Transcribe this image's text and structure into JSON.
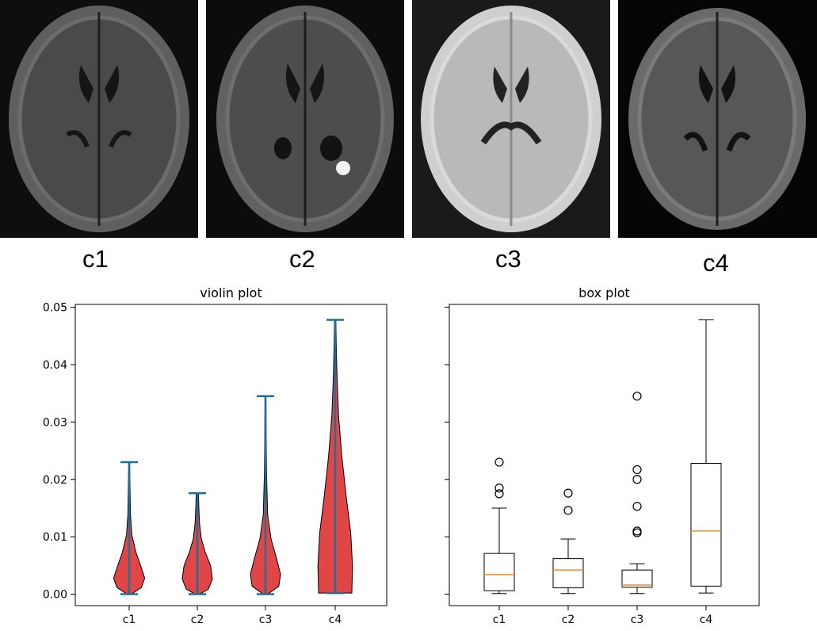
{
  "images": [
    {
      "caption": "c1"
    },
    {
      "caption": "c2"
    },
    {
      "caption": "c3"
    },
    {
      "caption": "c4"
    }
  ],
  "colors": {
    "violin_fill": "#e04646",
    "violin_edge": "#000000",
    "violin_lines": "#1f6f9a",
    "box_median": "#f28e2b",
    "box_edge": "#000000"
  },
  "chart_data": [
    {
      "type": "violin",
      "title": "violin plot",
      "categories": [
        "c1",
        "c2",
        "c3",
        "c4"
      ],
      "ylim": [
        -0.002,
        0.0505
      ],
      "yticks": [
        0.0,
        0.01,
        0.02,
        0.03,
        0.04,
        0.05
      ],
      "ytick_labels": [
        "0.00",
        "0.01",
        "0.02",
        "0.03",
        "0.04",
        "0.05"
      ],
      "series": [
        {
          "min": 0.0,
          "max": 0.023
        },
        {
          "min": 0.0,
          "max": 0.0176
        },
        {
          "min": 0.0,
          "max": 0.0345
        },
        {
          "min": 0.0002,
          "max": 0.0478
        }
      ]
    },
    {
      "type": "box",
      "title": "box plot",
      "categories": [
        "c1",
        "c2",
        "c3",
        "c4"
      ],
      "ylim": [
        -0.002,
        0.0505
      ],
      "series": [
        {
          "whisker_low": 0.0001,
          "q1": 0.0006,
          "median": 0.0034,
          "q3": 0.0071,
          "whisker_high": 0.015,
          "outliers": [
            0.0175,
            0.0185,
            0.023
          ]
        },
        {
          "whisker_low": 0.0001,
          "q1": 0.0011,
          "median": 0.0042,
          "q3": 0.0062,
          "whisker_high": 0.0096,
          "outliers": [
            0.0146,
            0.0176
          ]
        },
        {
          "whisker_low": 0.0001,
          "q1": 0.0012,
          "median": 0.0016,
          "q3": 0.0042,
          "whisker_high": 0.0053,
          "outliers": [
            0.0107,
            0.011,
            0.0153,
            0.02,
            0.0217,
            0.0345
          ]
        },
        {
          "whisker_low": 0.0002,
          "q1": 0.0014,
          "median": 0.011,
          "q3": 0.0228,
          "whisker_high": 0.0478,
          "outliers": []
        }
      ]
    }
  ]
}
